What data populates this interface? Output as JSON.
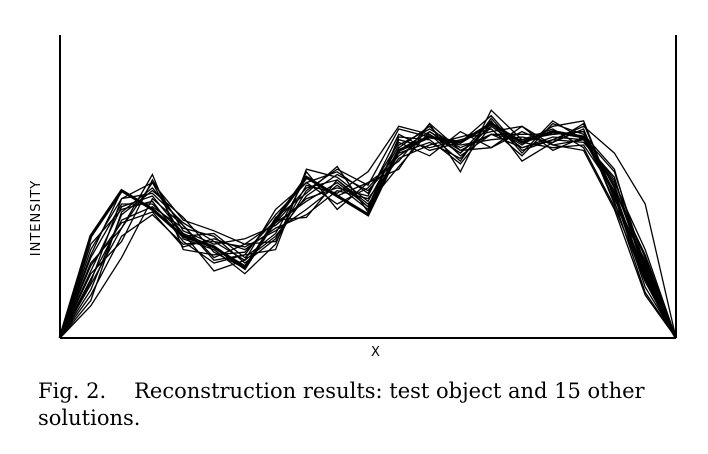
{
  "chart_data": {
    "type": "line",
    "title": "",
    "xlabel": "X",
    "ylabel": "INTENSITY",
    "xlim": [
      0,
      20
    ],
    "ylim": [
      0,
      1
    ],
    "grid": false,
    "legend": "none",
    "x": [
      0,
      1,
      2,
      3,
      4,
      5,
      6,
      7,
      8,
      9,
      10,
      11,
      12,
      13,
      14,
      15,
      16,
      17,
      18,
      19,
      20
    ],
    "series": [
      {
        "values": [
          0,
          0.38,
          0.55,
          0.48,
          0.38,
          0.34,
          0.26,
          0.44,
          0.6,
          0.53,
          0.46,
          0.7,
          0.75,
          0.73,
          0.8,
          0.73,
          0.77,
          0.75,
          0.54,
          0.22,
          0
        ]
      },
      {
        "values": [
          0,
          0.12,
          0.3,
          0.52,
          0.42,
          0.29,
          0.31,
          0.46,
          0.58,
          0.62,
          0.54,
          0.73,
          0.68,
          0.77,
          0.71,
          0.79,
          0.72,
          0.7,
          0.48,
          0.16,
          0
        ]
      },
      {
        "values": [
          0,
          0.2,
          0.41,
          0.58,
          0.44,
          0.4,
          0.35,
          0.43,
          0.56,
          0.59,
          0.5,
          0.64,
          0.77,
          0.7,
          0.76,
          0.71,
          0.74,
          0.79,
          0.69,
          0.5,
          0
        ]
      },
      {
        "values": [
          0,
          0.25,
          0.49,
          0.53,
          0.39,
          0.25,
          0.29,
          0.38,
          0.53,
          0.61,
          0.55,
          0.68,
          0.76,
          0.66,
          0.82,
          0.69,
          0.81,
          0.74,
          0.57,
          0.25,
          0
        ]
      },
      {
        "values": [
          0,
          0.16,
          0.38,
          0.46,
          0.35,
          0.36,
          0.34,
          0.4,
          0.48,
          0.57,
          0.48,
          0.71,
          0.79,
          0.68,
          0.76,
          0.74,
          0.76,
          0.77,
          0.56,
          0.3,
          0
        ]
      },
      {
        "values": [
          0,
          0.33,
          0.52,
          0.58,
          0.37,
          0.33,
          0.24,
          0.35,
          0.62,
          0.48,
          0.58,
          0.66,
          0.8,
          0.62,
          0.85,
          0.74,
          0.78,
          0.71,
          0.49,
          0.21,
          0
        ]
      },
      {
        "values": [
          0,
          0.22,
          0.44,
          0.49,
          0.41,
          0.38,
          0.28,
          0.37,
          0.57,
          0.54,
          0.62,
          0.79,
          0.76,
          0.69,
          0.81,
          0.66,
          0.73,
          0.8,
          0.53,
          0.19,
          0
        ]
      },
      {
        "values": [
          0,
          0.28,
          0.41,
          0.61,
          0.33,
          0.31,
          0.32,
          0.44,
          0.45,
          0.59,
          0.49,
          0.74,
          0.71,
          0.74,
          0.77,
          0.79,
          0.7,
          0.75,
          0.62,
          0.27,
          0
        ]
      },
      {
        "values": [
          0,
          0.31,
          0.55,
          0.48,
          0.38,
          0.39,
          0.3,
          0.39,
          0.6,
          0.53,
          0.58,
          0.63,
          0.8,
          0.7,
          0.71,
          0.77,
          0.72,
          0.74,
          0.58,
          0.33,
          0
        ]
      },
      {
        "values": [
          0,
          0.18,
          0.46,
          0.55,
          0.45,
          0.32,
          0.26,
          0.45,
          0.54,
          0.64,
          0.47,
          0.75,
          0.74,
          0.65,
          0.79,
          0.72,
          0.79,
          0.81,
          0.52,
          0.28,
          0
        ]
      },
      {
        "values": [
          0,
          0.24,
          0.36,
          0.59,
          0.4,
          0.35,
          0.37,
          0.42,
          0.52,
          0.56,
          0.53,
          0.76,
          0.7,
          0.73,
          0.83,
          0.7,
          0.74,
          0.73,
          0.6,
          0.23,
          0
        ]
      },
      {
        "values": [
          0,
          0.35,
          0.48,
          0.51,
          0.36,
          0.28,
          0.31,
          0.33,
          0.63,
          0.6,
          0.51,
          0.72,
          0.78,
          0.71,
          0.76,
          0.76,
          0.76,
          0.77,
          0.51,
          0.17,
          0
        ]
      },
      {
        "values": [
          0,
          0.21,
          0.52,
          0.54,
          0.43,
          0.36,
          0.29,
          0.48,
          0.58,
          0.5,
          0.56,
          0.69,
          0.73,
          0.67,
          0.8,
          0.73,
          0.71,
          0.72,
          0.55,
          0.31,
          0
        ]
      },
      {
        "values": [
          0,
          0.27,
          0.43,
          0.47,
          0.34,
          0.37,
          0.33,
          0.41,
          0.46,
          0.55,
          0.52,
          0.67,
          0.72,
          0.75,
          0.78,
          0.68,
          0.8,
          0.76,
          0.63,
          0.24,
          0
        ]
      },
      {
        "values": [
          0,
          0.14,
          0.47,
          0.56,
          0.42,
          0.3,
          0.35,
          0.36,
          0.55,
          0.63,
          0.57,
          0.78,
          0.75,
          0.72,
          0.74,
          0.75,
          0.73,
          0.78,
          0.5,
          0.29,
          0
        ]
      },
      {
        "values": [
          0,
          0.3,
          0.5,
          0.5,
          0.39,
          0.34,
          0.27,
          0.43,
          0.51,
          0.58,
          0.49,
          0.7,
          0.77,
          0.69,
          0.79,
          0.71,
          0.75,
          0.74,
          0.59,
          0.26,
          0
        ]
      }
    ]
  },
  "caption": {
    "number": "Fig. 2.",
    "text": "Reconstruction results:   test object and 15 other solutions."
  }
}
